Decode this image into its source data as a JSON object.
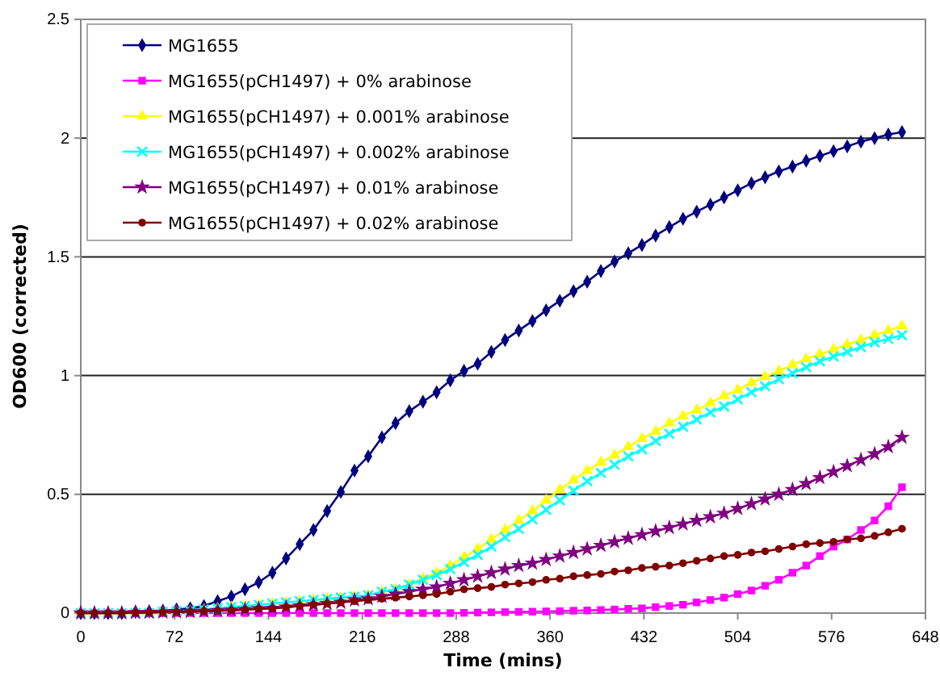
{
  "chart_data": {
    "type": "line",
    "xlabel": "Time (mins)",
    "ylabel": "OD600 (corrected)",
    "x": [
      0,
      10.5,
      21,
      31.5,
      42,
      52.5,
      63,
      73.5,
      84,
      94.5,
      105,
      115.5,
      126,
      136.5,
      147,
      157.5,
      168,
      178.5,
      189,
      199.5,
      210,
      220.5,
      231,
      241.5,
      252,
      262.5,
      273,
      283.5,
      294,
      304.5,
      315,
      325.5,
      336,
      346.5,
      357,
      367.5,
      378,
      388.5,
      399,
      409.5,
      420,
      430.5,
      441,
      451.5,
      462,
      472.5,
      483,
      493.5,
      504,
      514.5,
      525,
      535.5,
      546,
      556.5,
      567,
      577.5,
      588,
      598.5,
      609,
      619.5,
      630
    ],
    "xlim": [
      0,
      648
    ],
    "xticks": [
      0,
      72,
      144,
      216,
      288,
      360,
      432,
      504,
      576,
      648
    ],
    "ylim": [
      0,
      2.5
    ],
    "yticks": [
      0,
      0.5,
      1,
      1.5,
      2,
      2.5
    ],
    "grid": "y",
    "legend": "top left",
    "line_style": "solid",
    "series": [
      {
        "name": "MG1655",
        "color": "#000080",
        "marker": "diamond",
        "values": [
          0,
          0,
          0,
          0,
          0.005,
          0.007,
          0.01,
          0.015,
          0.02,
          0.03,
          0.05,
          0.07,
          0.1,
          0.13,
          0.17,
          0.23,
          0.29,
          0.35,
          0.43,
          0.51,
          0.6,
          0.66,
          0.74,
          0.8,
          0.85,
          0.89,
          0.93,
          0.98,
          1.02,
          1.05,
          1.1,
          1.15,
          1.19,
          1.23,
          1.275,
          1.315,
          1.355,
          1.395,
          1.44,
          1.48,
          1.515,
          1.55,
          1.59,
          1.625,
          1.66,
          1.69,
          1.72,
          1.75,
          1.78,
          1.81,
          1.835,
          1.86,
          1.88,
          1.905,
          1.925,
          1.945,
          1.965,
          1.985,
          2,
          2.015,
          2.025
        ]
      },
      {
        "name": "MG1655(pCH1497) + 0% arabinose",
        "color": "#ff00ff",
        "marker": "square",
        "values": [
          null,
          null,
          null,
          null,
          0,
          0,
          0,
          0,
          0,
          0,
          0,
          0,
          0,
          0,
          0,
          0,
          0,
          0,
          0,
          0,
          0,
          0,
          0,
          0,
          0,
          0,
          0,
          0,
          0.001,
          0.002,
          0.003,
          0.004,
          0.005,
          0.006,
          0.007,
          0.008,
          0.01,
          0.011,
          0.013,
          0.015,
          0.018,
          0.02,
          0.025,
          0.03,
          0.035,
          0.045,
          0.055,
          0.065,
          0.08,
          0.095,
          0.115,
          0.14,
          0.17,
          0.2,
          0.24,
          0.28,
          0.31,
          0.35,
          0.39,
          0.45,
          0.53
        ]
      },
      {
        "name": "MG1655(pCH1497) + 0.001% arabinose",
        "color": "#ffff00",
        "marker": "triangle",
        "values": [
          0,
          0,
          0,
          0,
          0,
          0,
          0.005,
          0.008,
          0.01,
          0.015,
          0.02,
          0.025,
          0.03,
          0.035,
          0.04,
          0.045,
          0.05,
          0.055,
          0.06,
          0.065,
          0.07,
          0.075,
          0.09,
          0.1,
          0.12,
          0.145,
          0.17,
          0.2,
          0.235,
          0.27,
          0.31,
          0.35,
          0.39,
          0.43,
          0.475,
          0.52,
          0.56,
          0.6,
          0.635,
          0.665,
          0.7,
          0.735,
          0.765,
          0.8,
          0.83,
          0.855,
          0.885,
          0.915,
          0.94,
          0.97,
          0.995,
          1.02,
          1.045,
          1.07,
          1.09,
          1.11,
          1.13,
          1.15,
          1.17,
          1.19,
          1.21
        ]
      },
      {
        "name": "MG1655(pCH1497) + 0.002% arabinose",
        "color": "#00ffff",
        "marker": "cross",
        "values": [
          0,
          0,
          0,
          0,
          0,
          0,
          0.005,
          0.008,
          0.01,
          0.015,
          0.02,
          0.025,
          0.03,
          0.035,
          0.04,
          0.045,
          0.05,
          0.055,
          0.06,
          0.065,
          0.07,
          0.075,
          0.09,
          0.1,
          0.12,
          0.14,
          0.16,
          0.185,
          0.215,
          0.245,
          0.28,
          0.32,
          0.355,
          0.395,
          0.435,
          0.475,
          0.515,
          0.555,
          0.59,
          0.625,
          0.66,
          0.69,
          0.725,
          0.755,
          0.785,
          0.815,
          0.845,
          0.87,
          0.9,
          0.93,
          0.955,
          0.985,
          1.01,
          1.035,
          1.06,
          1.08,
          1.1,
          1.12,
          1.14,
          1.155,
          1.17
        ]
      },
      {
        "name": "MG1655(pCH1497) + 0.01% arabinose",
        "color": "#800080",
        "marker": "star",
        "values": [
          0,
          0,
          0,
          0,
          0.002,
          0.003,
          0.004,
          0.005,
          0.006,
          0.008,
          0.01,
          0.012,
          0.015,
          0.018,
          0.02,
          0.025,
          0.03,
          0.035,
          0.04,
          0.045,
          0.055,
          0.06,
          0.07,
          0.08,
          0.09,
          0.1,
          0.11,
          0.125,
          0.14,
          0.155,
          0.17,
          0.185,
          0.2,
          0.21,
          0.225,
          0.24,
          0.255,
          0.27,
          0.285,
          0.3,
          0.315,
          0.33,
          0.345,
          0.36,
          0.375,
          0.39,
          0.405,
          0.42,
          0.44,
          0.46,
          0.48,
          0.5,
          0.52,
          0.545,
          0.57,
          0.595,
          0.62,
          0.645,
          0.67,
          0.7,
          0.74
        ]
      },
      {
        "name": "MG1655(pCH1497) + 0.02% arabinose",
        "color": "#800000",
        "marker": "circle",
        "values": [
          0,
          0,
          0,
          0,
          0.002,
          0.003,
          0.004,
          0.005,
          0.006,
          0.008,
          0.01,
          0.012,
          0.015,
          0.018,
          0.02,
          0.025,
          0.03,
          0.035,
          0.04,
          0.045,
          0.05,
          0.055,
          0.06,
          0.065,
          0.07,
          0.075,
          0.08,
          0.09,
          0.1,
          0.105,
          0.11,
          0.12,
          0.125,
          0.13,
          0.14,
          0.145,
          0.155,
          0.16,
          0.165,
          0.175,
          0.18,
          0.19,
          0.195,
          0.2,
          0.21,
          0.22,
          0.23,
          0.24,
          0.245,
          0.255,
          0.26,
          0.27,
          0.28,
          0.29,
          0.295,
          0.3,
          0.31,
          0.315,
          0.325,
          0.34,
          0.355
        ]
      }
    ]
  }
}
